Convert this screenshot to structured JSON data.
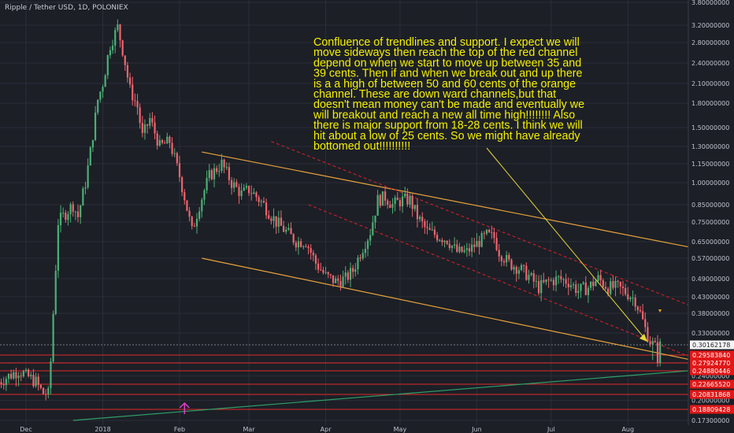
{
  "header": {
    "symbol_title": "Ripple / Tether USD, 1D, POLONIEX"
  },
  "colors": {
    "background": "#1c1f26",
    "grid": "#2a2e38",
    "candle_up": "#4caf76",
    "candle_down": "#f0646e",
    "orange_channel": "#e8a33c",
    "red_channel": "#c0202c",
    "level_line": "#e02a2a",
    "green_trendline": "#2ea06a",
    "annotation_text": "#f5f000",
    "arrow_line": "#e8d83a",
    "marker_magenta": "#e040c8"
  },
  "annotation": {
    "lines": [
      "Confluence of trendlines and support. I expect we will",
      "move sideways then reach the top of the red channel",
      "depend on when we start to move up between 35 and",
      "39 cents. Then if and when we break out and up there",
      "is a a high of between 50 and 60 cents of the orange",
      "channel. These are down ward channels,but that",
      "doesn't mean money can't be made and eventually we",
      "will breakout and reach a new all time high!!!!!!!! Also",
      "there is major support from 18-28 cents. I think we will",
      "hit about a low of 25 cents. So we might have already",
      "bottomed out!!!!!!!!!!"
    ]
  },
  "chart_data": {
    "type": "candlestick",
    "title": "Ripple / Tether USD, 1D, POLONIEX",
    "scale": "log",
    "ylim": [
      0.17,
      3.8
    ],
    "x_ticks": [
      "Dec",
      "2018",
      "Feb",
      "Mar",
      "Apr",
      "May",
      "Jun",
      "Jul",
      "Aug"
    ],
    "y_ticks": [
      "3.80000000",
      "3.20000000",
      "2.80000000",
      "2.40000000",
      "2.10000000",
      "1.80000000",
      "1.50000000",
      "1.30000000",
      "1.15000000",
      "1.00000000",
      "0.85000000",
      "0.75000000",
      "0.65000000",
      "0.57000000",
      "0.49000000",
      "0.43000000",
      "0.38000000",
      "0.33000000",
      "0.28000000",
      "0.24000000",
      "0.20000000",
      "0.17300000"
    ],
    "price_levels": [
      {
        "label": "0.30162178",
        "style": "current"
      },
      {
        "label": "0.29583840",
        "style": "level"
      },
      {
        "label": "0.27924770",
        "style": "level"
      },
      {
        "label": "0.24880446",
        "style": "level"
      },
      {
        "label": "0.22665520",
        "style": "level"
      },
      {
        "label": "0.20831868",
        "style": "level"
      },
      {
        "label": "0.18809428",
        "style": "level"
      }
    ],
    "close_path": [
      [
        "2017-11-20",
        0.23
      ],
      [
        "2017-11-28",
        0.25
      ],
      [
        "2017-12-05",
        0.23
      ],
      [
        "2017-12-08",
        0.21
      ],
      [
        "2017-12-10",
        0.21
      ],
      [
        "2017-12-12",
        0.38
      ],
      [
        "2017-12-14",
        0.75
      ],
      [
        "2017-12-17",
        0.8
      ],
      [
        "2017-12-20",
        0.85
      ],
      [
        "2017-12-22",
        0.78
      ],
      [
        "2017-12-25",
        1.0
      ],
      [
        "2017-12-27",
        1.25
      ],
      [
        "2017-12-30",
        1.85
      ],
      [
        "2018-01-01",
        2.1
      ],
      [
        "2018-01-04",
        2.75
      ],
      [
        "2018-01-07",
        3.15
      ],
      [
        "2018-01-09",
        2.65
      ],
      [
        "2018-01-12",
        2.0
      ],
      [
        "2018-01-15",
        1.75
      ],
      [
        "2018-01-17",
        1.4
      ],
      [
        "2018-01-20",
        1.6
      ],
      [
        "2018-01-24",
        1.3
      ],
      [
        "2018-01-28",
        1.35
      ],
      [
        "2018-02-01",
        1.05
      ],
      [
        "2018-02-03",
        0.9
      ],
      [
        "2018-02-06",
        0.7
      ],
      [
        "2018-02-09",
        0.85
      ],
      [
        "2018-02-13",
        1.05
      ],
      [
        "2018-02-18",
        1.15
      ],
      [
        "2018-02-22",
        1.0
      ],
      [
        "2018-02-26",
        0.92
      ],
      [
        "2018-03-01",
        0.95
      ],
      [
        "2018-03-03",
        0.92
      ],
      [
        "2018-03-07",
        0.85
      ],
      [
        "2018-03-12",
        0.75
      ],
      [
        "2018-03-16",
        0.7
      ],
      [
        "2018-03-20",
        0.65
      ],
      [
        "2018-03-24",
        0.65
      ],
      [
        "2018-03-28",
        0.55
      ],
      [
        "2018-04-01",
        0.5
      ],
      [
        "2018-04-05",
        0.48
      ],
      [
        "2018-04-09",
        0.49
      ],
      [
        "2018-04-12",
        0.52
      ],
      [
        "2018-04-16",
        0.62
      ],
      [
        "2018-04-19",
        0.7
      ],
      [
        "2018-04-22",
        0.88
      ],
      [
        "2018-04-25",
        0.9
      ],
      [
        "2018-04-28",
        0.85
      ],
      [
        "2018-05-02",
        0.88
      ],
      [
        "2018-05-05",
        0.88
      ],
      [
        "2018-05-08",
        0.78
      ],
      [
        "2018-05-12",
        0.7
      ],
      [
        "2018-05-16",
        0.68
      ],
      [
        "2018-05-20",
        0.66
      ],
      [
        "2018-05-24",
        0.6
      ],
      [
        "2018-05-28",
        0.6
      ],
      [
        "2018-06-01",
        0.64
      ],
      [
        "2018-06-05",
        0.68
      ],
      [
        "2018-06-08",
        0.67
      ],
      [
        "2018-06-10",
        0.6
      ],
      [
        "2018-06-14",
        0.55
      ],
      [
        "2018-06-18",
        0.53
      ],
      [
        "2018-06-22",
        0.5
      ],
      [
        "2018-06-26",
        0.46
      ],
      [
        "2018-06-30",
        0.48
      ],
      [
        "2018-07-04",
        0.49
      ],
      [
        "2018-07-08",
        0.48
      ],
      [
        "2018-07-12",
        0.45
      ],
      [
        "2018-07-16",
        0.46
      ],
      [
        "2018-07-20",
        0.49
      ],
      [
        "2018-07-24",
        0.46
      ],
      [
        "2018-07-28",
        0.46
      ],
      [
        "2018-08-01",
        0.44
      ],
      [
        "2018-08-04",
        0.42
      ],
      [
        "2018-08-06",
        0.38
      ],
      [
        "2018-08-08",
        0.34
      ],
      [
        "2018-08-10",
        0.31
      ],
      [
        "2018-08-13",
        0.29
      ],
      [
        "2018-08-14",
        0.3
      ]
    ],
    "trendlines": [
      {
        "name": "orange channel upper",
        "color": "orange",
        "from": [
          "2018-02-10",
          1.25
        ],
        "to": [
          "2018-08-27",
          0.62
        ]
      },
      {
        "name": "orange channel lower",
        "color": "orange",
        "from": [
          "2018-02-10",
          0.57
        ],
        "to": [
          "2018-08-27",
          0.285
        ]
      },
      {
        "name": "red channel upper",
        "color": "red",
        "from": [
          "2018-03-10",
          1.35
        ],
        "to": [
          "2018-08-27",
          0.4
        ]
      },
      {
        "name": "red channel lower",
        "color": "red",
        "from": [
          "2018-03-25",
          0.85
        ],
        "to": [
          "2018-08-27",
          0.29
        ]
      },
      {
        "name": "green support",
        "color": "green",
        "from": [
          "2017-12-20",
          0.17
        ],
        "to": [
          "2018-08-27",
          0.25
        ]
      }
    ],
    "grid": true,
    "legend": "none"
  }
}
